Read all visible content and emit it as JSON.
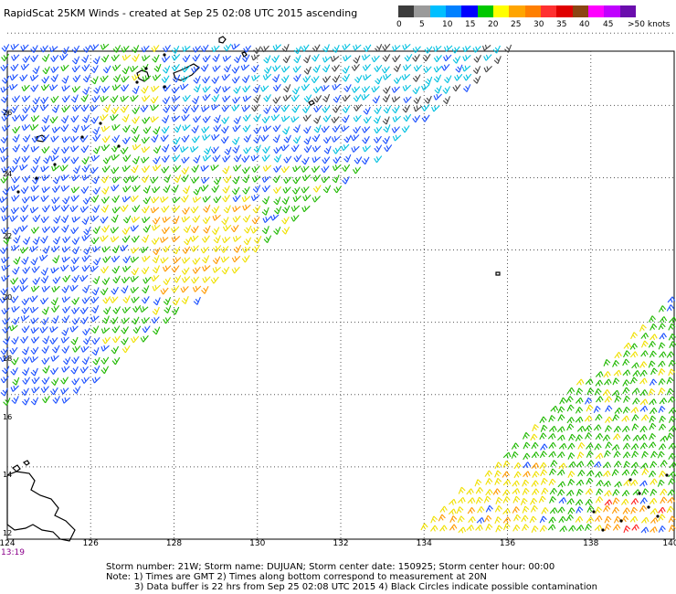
{
  "title": "RapidScat 25KM Winds - created at Sep 25 02:08 UTC 2015 ascending",
  "legend": {
    "colors": [
      "#3c3c3c",
      "#8a8a8a",
      "#00bfff",
      "#0070ff",
      "#0000ff",
      "#00c800",
      "#00a000",
      "#ffff00",
      "#ffd700",
      "#ffa500",
      "#ff7f00",
      "#ff3030",
      "#ff0000",
      "#8b4513",
      "#6b3a2a",
      "#ff00ff",
      "#c000ff",
      "#8000c0",
      "#6a0dad",
      "#400080"
    ],
    "ticks": [
      "0",
      "5",
      "10",
      "15",
      "20",
      "25",
      "30",
      "35",
      "40",
      "45",
      ">50 knots"
    ]
  },
  "axes": {
    "lon_labels": [
      "124",
      "126",
      "128",
      "130",
      "132",
      "134",
      "136",
      "138",
      "140"
    ],
    "lat_labels": [
      "26",
      "26",
      "24",
      "22",
      "20",
      "18",
      "16",
      "14",
      "12"
    ]
  },
  "time_label": "13:19",
  "footer": {
    "line1": "Storm number: 21W;  Storm name: DUJUAN;  Storm center date: 150925;  Storm center hour: 00:00",
    "line2": "Note: 1) Times are GMT  2) Times along bottom correspond to measurement at 20N",
    "line3": "3) Data buffer is 22 hrs from Sep 25 02:08 UTC 2015  4) Black Circles indicate possible contamination"
  }
}
